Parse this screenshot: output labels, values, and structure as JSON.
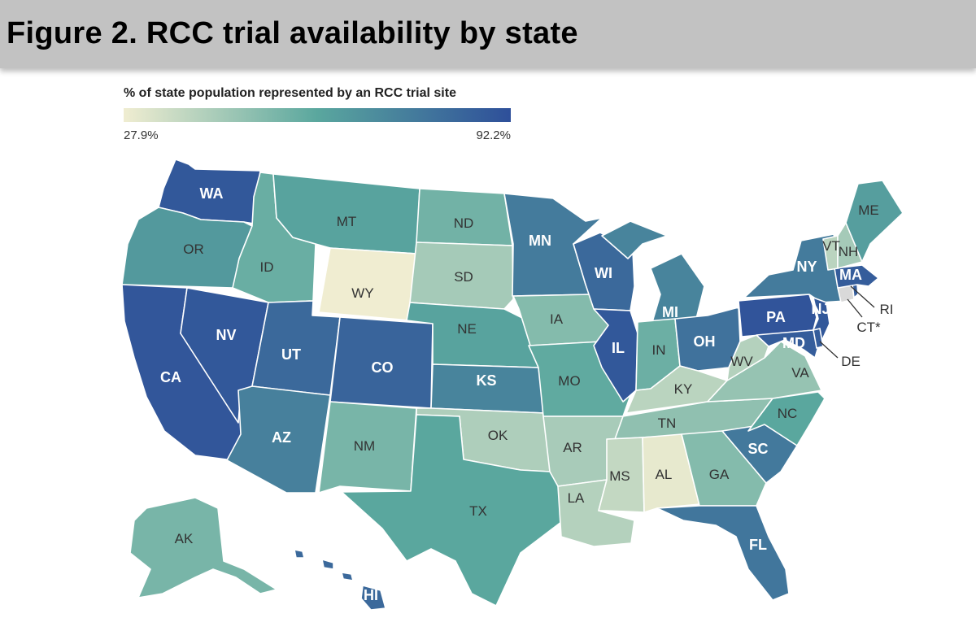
{
  "title": "Figure 2. RCC trial availability by state",
  "legend": {
    "title": "% of state population represented by an RCC trial site",
    "min_label": "27.9%",
    "max_label": "92.2%",
    "min_value": 27.9,
    "max_value": 92.2,
    "color_low": "#f0edd1",
    "color_mid": "#5aa79e",
    "color_high": "#2e4f9a"
  },
  "states": [
    {
      "abbr": "WA",
      "label": "WA",
      "level": 0.95
    },
    {
      "abbr": "OR",
      "label": "OR",
      "level": 0.58
    },
    {
      "abbr": "CA",
      "label": "CA",
      "level": 0.96
    },
    {
      "abbr": "NV",
      "label": "NV",
      "level": 0.95
    },
    {
      "abbr": "ID",
      "label": "ID",
      "level": 0.45
    },
    {
      "abbr": "MT",
      "label": "MT",
      "level": 0.52
    },
    {
      "abbr": "WY",
      "label": "WY",
      "level": 0.0
    },
    {
      "abbr": "UT",
      "label": "UT",
      "level": 0.85
    },
    {
      "abbr": "CO",
      "label": "CO",
      "level": 0.88
    },
    {
      "abbr": "AZ",
      "label": "AZ",
      "level": 0.72
    },
    {
      "abbr": "NM",
      "label": "NM",
      "level": 0.4
    },
    {
      "abbr": "ND",
      "label": "ND",
      "level": 0.42
    },
    {
      "abbr": "SD",
      "label": "SD",
      "level": 0.25
    },
    {
      "abbr": "NE",
      "label": "NE",
      "level": 0.52
    },
    {
      "abbr": "KS",
      "label": "KS",
      "level": 0.7
    },
    {
      "abbr": "OK",
      "label": "OK",
      "level": 0.22
    },
    {
      "abbr": "TX",
      "label": "TX",
      "level": 0.5
    },
    {
      "abbr": "MN",
      "label": "MN",
      "level": 0.75
    },
    {
      "abbr": "IA",
      "label": "IA",
      "level": 0.36
    },
    {
      "abbr": "MO",
      "label": "MO",
      "level": 0.48
    },
    {
      "abbr": "AR",
      "label": "AR",
      "level": 0.24
    },
    {
      "abbr": "LA",
      "label": "LA",
      "level": 0.2
    },
    {
      "abbr": "WI",
      "label": "WI",
      "level": 0.85
    },
    {
      "abbr": "IL",
      "label": "IL",
      "level": 0.95
    },
    {
      "abbr": "MI",
      "label": "MI",
      "level": 0.7
    },
    {
      "abbr": "IN",
      "label": "IN",
      "level": 0.44
    },
    {
      "abbr": "OH",
      "label": "OH",
      "level": 0.8
    },
    {
      "abbr": "KY",
      "label": "KY",
      "level": 0.18
    },
    {
      "abbr": "TN",
      "label": "TN",
      "level": 0.32
    },
    {
      "abbr": "MS",
      "label": "MS",
      "level": 0.15
    },
    {
      "abbr": "AL",
      "label": "AL",
      "level": 0.03
    },
    {
      "abbr": "GA",
      "label": "GA",
      "level": 0.36
    },
    {
      "abbr": "FL",
      "label": "FL",
      "level": 0.78
    },
    {
      "abbr": "SC",
      "label": "SC",
      "level": 0.76
    },
    {
      "abbr": "NC",
      "label": "NC",
      "level": 0.5
    },
    {
      "abbr": "VA",
      "label": "VA",
      "level": 0.3
    },
    {
      "abbr": "WV",
      "label": "WV",
      "level": 0.2
    },
    {
      "abbr": "PA",
      "label": "PA",
      "level": 0.97
    },
    {
      "abbr": "NY",
      "label": "NY",
      "level": 0.75
    },
    {
      "abbr": "NJ",
      "label": "NJ",
      "level": 0.95
    },
    {
      "abbr": "DE",
      "label": "DE",
      "level": 0.92
    },
    {
      "abbr": "MD",
      "label": "MD",
      "level": 0.92
    },
    {
      "abbr": "CT",
      "label": "CT*",
      "level": null
    },
    {
      "abbr": "RI",
      "label": "RI",
      "level": 0.92
    },
    {
      "abbr": "MA",
      "label": "MA",
      "level": 0.92
    },
    {
      "abbr": "VT",
      "label": "VT",
      "level": 0.18
    },
    {
      "abbr": "NH",
      "label": "NH",
      "level": 0.25
    },
    {
      "abbr": "ME",
      "label": "ME",
      "level": 0.55
    },
    {
      "abbr": "AK",
      "label": "AK",
      "level": 0.4
    },
    {
      "abbr": "HI",
      "label": "HI",
      "level": 0.85
    }
  ],
  "no_data_color": "#d9d9d9"
}
